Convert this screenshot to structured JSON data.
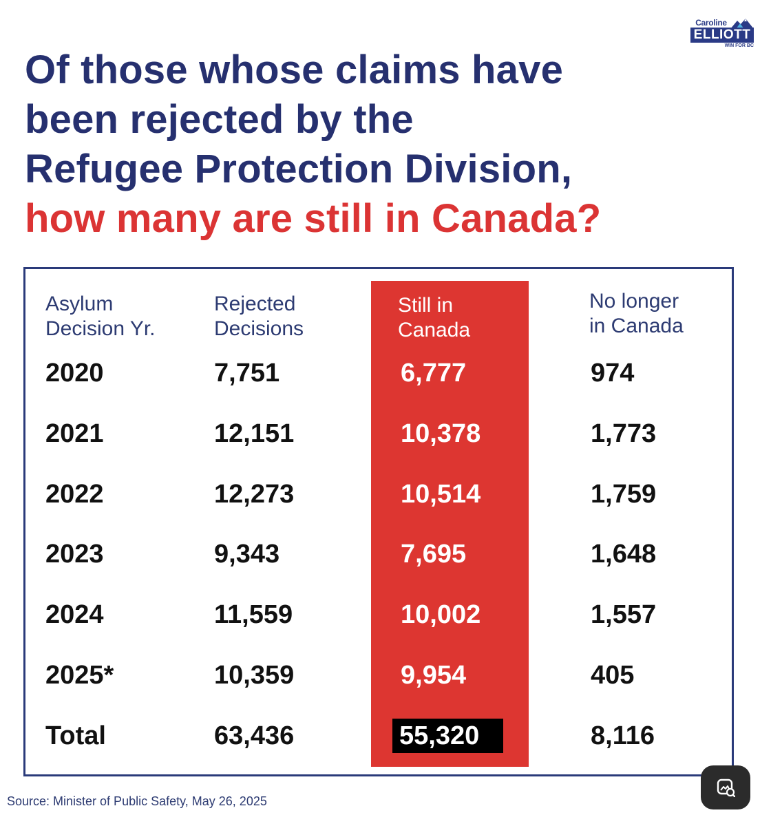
{
  "logo": {
    "first_name": "Caroline",
    "last_name": "ELLIOTT",
    "tagline": "WIN FOR BC",
    "icon": "mountain-icon"
  },
  "headline": {
    "line1": "Of those whose claims have",
    "line2": "been rejected by the",
    "line3": "Refugee Protection Division,",
    "line4": "how many are still in Canada?"
  },
  "table": {
    "headers": [
      {
        "line1": "Asylum",
        "line2": "Decision Yr."
      },
      {
        "line1": "Rejected",
        "line2": "Decisions"
      },
      {
        "line1": "Still in",
        "line2": "Canada"
      },
      {
        "line1": "No longer",
        "line2": "in Canada"
      }
    ],
    "rows": [
      {
        "year": "2020",
        "rejected": "7,751",
        "still": "6,777",
        "no_longer": "974"
      },
      {
        "year": "2021",
        "rejected": "12,151",
        "still": "10,378",
        "no_longer": "1,773"
      },
      {
        "year": "2022",
        "rejected": "12,273",
        "still": "10,514",
        "no_longer": "1,759"
      },
      {
        "year": "2023",
        "rejected": "9,343",
        "still": "7,695",
        "no_longer": "1,648"
      },
      {
        "year": "2024",
        "rejected": "11,559",
        "still": "10,002",
        "no_longer": "1,557"
      },
      {
        "year": "2025*",
        "rejected": "10,359",
        "still": "9,954",
        "no_longer": "405"
      },
      {
        "year": "Total",
        "rejected": "63,436",
        "still": "55,320",
        "no_longer": "8,116"
      }
    ]
  },
  "source": "Source: Minister of Public Safety, May 26, 2025",
  "colors": {
    "navy": "#26306f",
    "red": "#db3434",
    "column_red": "#dd3631"
  },
  "overlay": {
    "icon": "visual-search-icon"
  }
}
